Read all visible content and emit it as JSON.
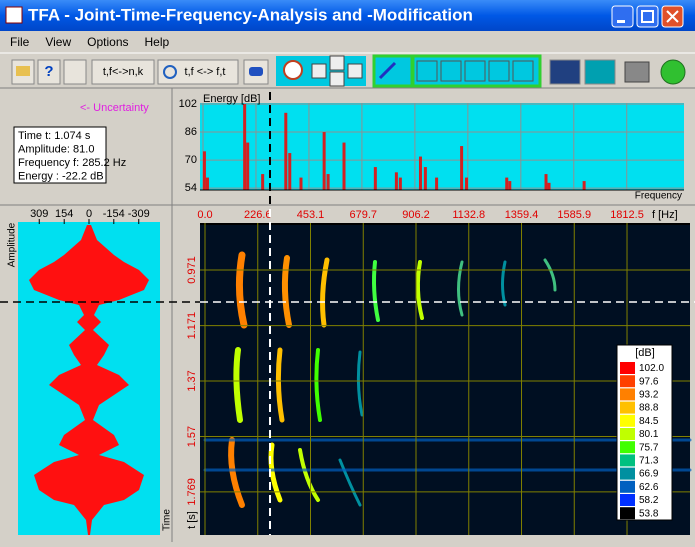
{
  "window": {
    "title": "TFA - Joint-Time-Frequency-Analysis and -Modification",
    "menu": [
      "File",
      "View",
      "Options",
      "Help"
    ],
    "toolbar": {
      "transform_nk": "t,f<->n,k",
      "transform_ft": "t,f <-> f,t"
    }
  },
  "info": {
    "uncertainty": "<- Uncertainty",
    "lines": [
      "Time t:  1.074 s",
      "Amplitude:  81.0",
      "Frequency f:  285.2 Hz",
      "Energy : -22.2 dB"
    ]
  },
  "chart_data": [
    {
      "type": "bar",
      "ylabel": "Energy [dB]",
      "xlabel": "Frequency",
      "color": "#d42020",
      "xlim": [
        0,
        2083
      ],
      "ylim": [
        52.9,
        102.6
      ],
      "yticks": [
        102,
        86,
        70,
        54
      ],
      "grid": true,
      "x": [
        4,
        17,
        176,
        189,
        253,
        352,
        369,
        417,
        516,
        533,
        601,
        735,
        825,
        842,
        928,
        949,
        997,
        1104,
        1125,
        1297,
        1310,
        1465,
        1478,
        1628
      ],
      "values": [
        75,
        60,
        102,
        80,
        62,
        97,
        74,
        60,
        86,
        62,
        80,
        66,
        63,
        60,
        72,
        66,
        60,
        78,
        60,
        60,
        58,
        62,
        57,
        58
      ]
    },
    {
      "type": "heatmap",
      "xlabel": "f [Hz]",
      "ylabel": "t [s]",
      "xlim": [
        0,
        2083
      ],
      "ylim": [
        0.802,
        1.924
      ],
      "xticks": [
        {
          "value": 0,
          "label": "0.0"
        },
        226.6,
        453.1,
        679.7,
        906.2,
        1132.8,
        1359.4,
        1585.9,
        1812.5
      ],
      "yticks": [
        0.971,
        1.171,
        1.37,
        1.57,
        1.769
      ],
      "colorbar": {
        "label": "[dB]",
        "values": [
          102.0,
          97.6,
          93.2,
          88.8,
          84.5,
          80.1,
          75.7,
          71.3,
          66.9,
          62.6,
          58.2,
          53.8
        ],
        "value_labels": [
          "102.0",
          "97.6",
          "93.2",
          "88.8",
          "84.5",
          "80.1",
          "75.7",
          "71.3",
          "66.9",
          "62.6",
          "58.2",
          "53.8"
        ],
        "colors": [
          "#ff0000",
          "#ff4000",
          "#ff8000",
          "#ffc000",
          "#ffff00",
          "#c0ff00",
          "#40ff00",
          "#00c080",
          "#0090a0",
          "#0060c0",
          "#0030ff",
          "#000000"
        ]
      }
    },
    {
      "type": "waveform",
      "xlabel": "Amplitude",
      "ylabel": "Time",
      "xlim": [
        441,
        -441
      ],
      "xticks": [
        309,
        154,
        0,
        -154,
        -309
      ]
    }
  ]
}
